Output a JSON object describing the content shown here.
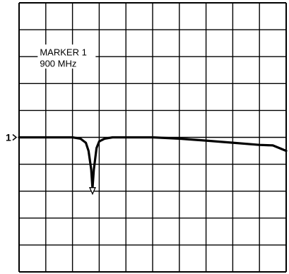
{
  "chart_data": {
    "type": "line",
    "title": "",
    "xlabel": "",
    "ylabel": "",
    "grid": true,
    "grid_divisions": {
      "x": 10,
      "y": 10
    },
    "reference_level_label": "1",
    "reference_level_division": 5,
    "marker": {
      "name": "MARKER 1",
      "frequency": "900 MHz",
      "x_division": 2.75,
      "y_division": 7.0
    },
    "series": [
      {
        "x": [
          0,
          0.5,
          1.0,
          1.5,
          2.0,
          2.3,
          2.5,
          2.6,
          2.7,
          2.75,
          2.8,
          2.9,
          3.0,
          3.2,
          3.5,
          4.0,
          5.0,
          6.0,
          7.0,
          8.0,
          9.0,
          9.5,
          10.0
        ],
        "y": [
          5.0,
          5.0,
          5.0,
          5.0,
          5.0,
          5.05,
          5.2,
          5.5,
          6.2,
          6.9,
          6.2,
          5.4,
          5.15,
          5.05,
          5.0,
          5.0,
          5.0,
          5.05,
          5.12,
          5.2,
          5.28,
          5.3,
          5.5
        ]
      }
    ]
  }
}
